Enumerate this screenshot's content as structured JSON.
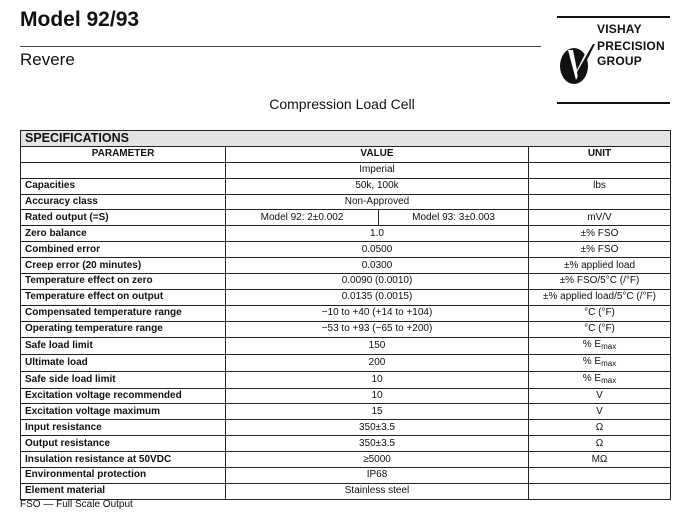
{
  "header": {
    "title": "Model 92/93",
    "subtitle": "Revere"
  },
  "logo": {
    "lines": [
      "VISHAY",
      "PRECISION",
      "GROUP"
    ]
  },
  "doc_title": "Compression Load Cell",
  "table": {
    "section": "SPECIFICATIONS",
    "columns": [
      "PARAMETER",
      "VALUE",
      "UNIT"
    ],
    "system_row": "Imperial",
    "rows": [
      {
        "param": "Capacities",
        "value": "50k, 100k",
        "unit": "lbs"
      },
      {
        "param": "Accuracy class",
        "value": "Non-Approved",
        "unit": ""
      },
      {
        "param": "Rated output (=S)",
        "value": "Model 92: 2±0.002",
        "value2": "Model 93: 3±0.003",
        "unit": "mV/V"
      },
      {
        "param": "Zero balance",
        "value": "1.0",
        "unit": "±% FSO"
      },
      {
        "param": "Combined error",
        "value": "0.0500",
        "unit": "±% FSO"
      },
      {
        "param": "Creep error (20 minutes)",
        "value": "0.0300",
        "unit": "±% applied load"
      },
      {
        "param": "Temperature effect on zero",
        "value": "0.0090 (0.0010)",
        "unit": "±% FSO/5°C (/°F)"
      },
      {
        "param": "Temperature effect on output",
        "value": "0.0135 (0.0015)",
        "unit": "±% applied load/5°C (/°F)"
      },
      {
        "param": "Compensated temperature range",
        "value": "−10 to +40 (+14 to +104)",
        "unit": "°C (°F)"
      },
      {
        "param": "Operating temperature range",
        "value": "−53 to +93 (−65 to +200)",
        "unit": "°C (°F)"
      },
      {
        "param": "Safe load limit",
        "value": "150",
        "unit": "% E",
        "unit_sub": "max"
      },
      {
        "param": "Ultimate load",
        "value": "200",
        "unit": "% E",
        "unit_sub": "max"
      },
      {
        "param": "Safe side load limit",
        "value": "10",
        "unit": "% E",
        "unit_sub": "max"
      },
      {
        "param": "Excitation voltage recommended",
        "value": "10",
        "unit": "V"
      },
      {
        "param": "Excitation voltage maximum",
        "value": "15",
        "unit": "V"
      },
      {
        "param": "Input resistance",
        "value": "350±3.5",
        "unit": "Ω"
      },
      {
        "param": "Output resistance",
        "value": "350±3.5",
        "unit": "Ω"
      },
      {
        "param": "Insulation resistance at 50VDC",
        "value": "≥5000",
        "unit": "MΩ"
      },
      {
        "param": "Environmental protection",
        "value": "IP68",
        "unit": ""
      },
      {
        "param": "Element material",
        "value": "Stainless steel",
        "unit": ""
      }
    ]
  },
  "footnote": "FSO — Full Scale Output"
}
